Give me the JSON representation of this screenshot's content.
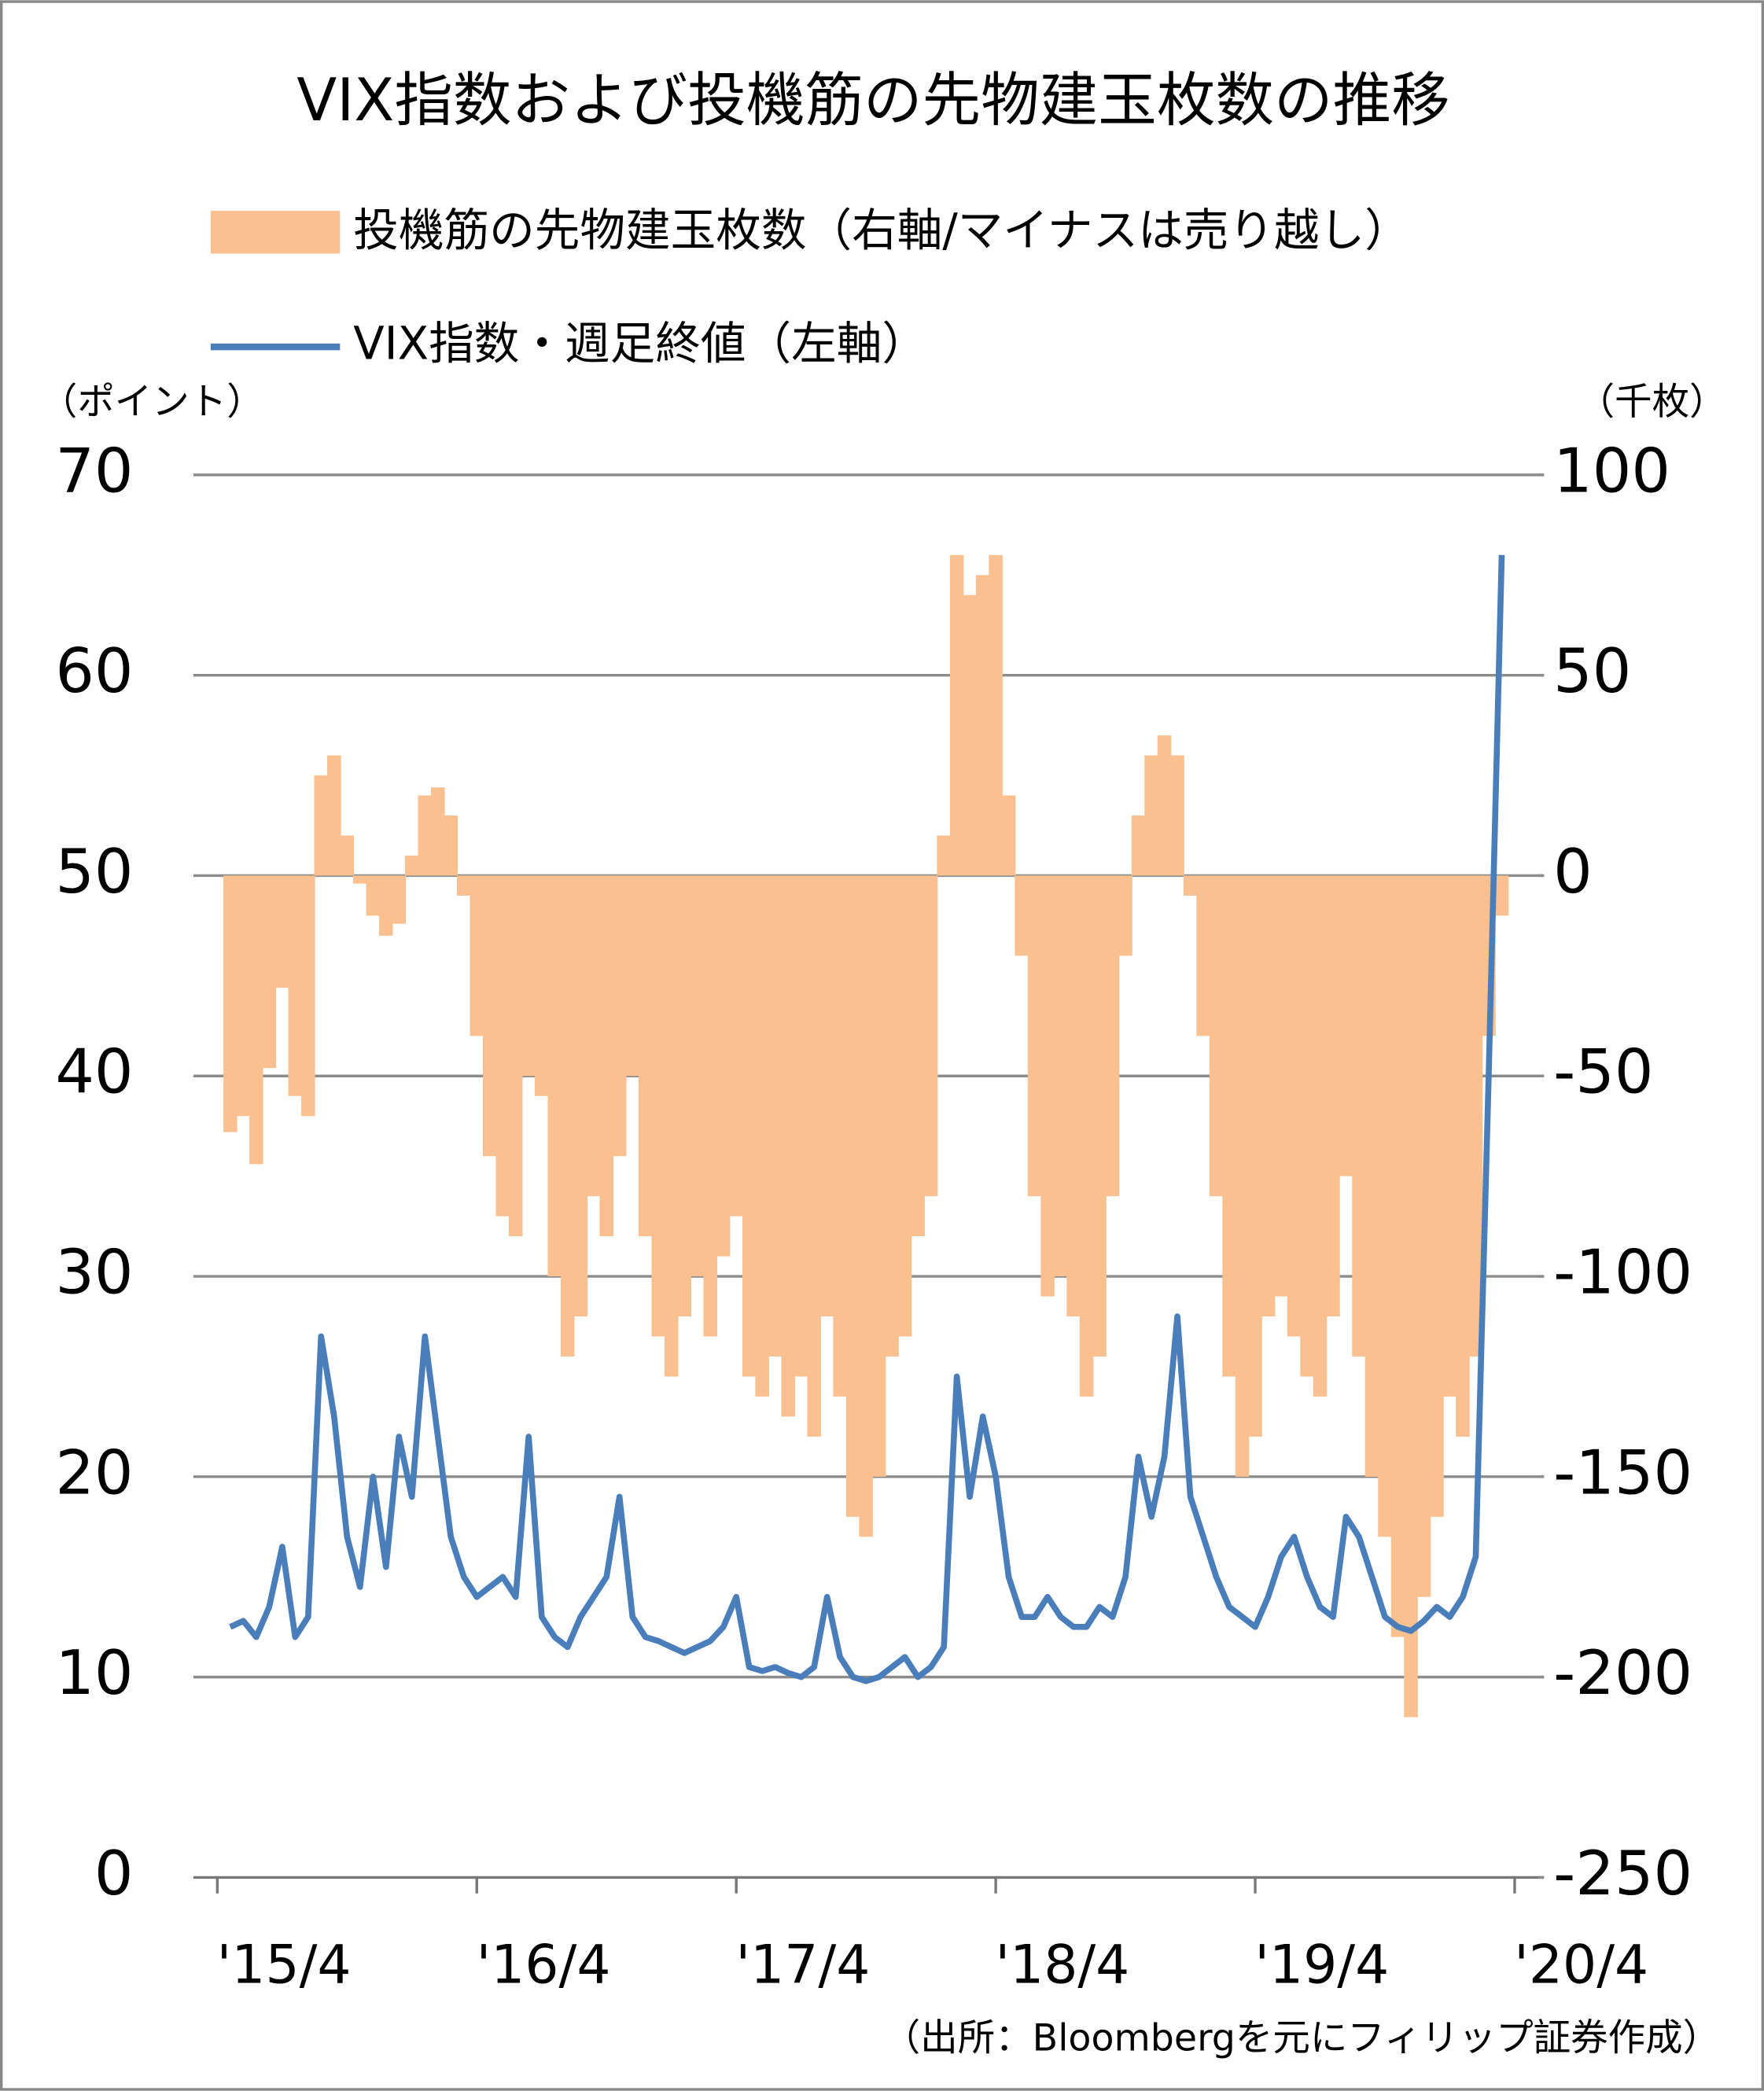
{
  "chart_data": {
    "type": "bar_line",
    "title": "VIX指数および投機筋の先物建玉枚数の推移",
    "y_label": "（ポイント）",
    "y2_label": "（千枚）",
    "source": "（出所：Bloombergを元にフィリップ証券作成）",
    "x": [
      2015.3,
      2015.35,
      2015.4,
      2015.45,
      2015.5,
      2015.55,
      2015.6,
      2015.65,
      2015.7,
      2015.75,
      2015.8,
      2015.85,
      2015.9,
      2015.95,
      2016.0,
      2016.05,
      2016.1,
      2016.15,
      2016.2,
      2016.25,
      2016.3,
      2016.35,
      2016.4,
      2016.45,
      2016.5,
      2016.55,
      2016.6,
      2016.65,
      2016.7,
      2016.75,
      2016.8,
      2016.85,
      2016.9,
      2016.95,
      2017.0,
      2017.05,
      2017.1,
      2017.15,
      2017.2,
      2017.25,
      2017.3,
      2017.35,
      2017.4,
      2017.45,
      2017.5,
      2017.55,
      2017.6,
      2017.65,
      2017.7,
      2017.75,
      2017.8,
      2017.85,
      2017.9,
      2017.95,
      2018.0,
      2018.05,
      2018.1,
      2018.15,
      2018.2,
      2018.25,
      2018.3,
      2018.35,
      2018.4,
      2018.45,
      2018.5,
      2018.55,
      2018.6,
      2018.65,
      2018.7,
      2018.75,
      2018.8,
      2018.85,
      2018.9,
      2018.95,
      2019.0,
      2019.05,
      2019.1,
      2019.15,
      2019.2,
      2019.25,
      2019.3,
      2019.35,
      2019.4,
      2019.45,
      2019.5,
      2019.55,
      2019.6,
      2019.65,
      2019.7,
      2019.75,
      2019.8,
      2019.85,
      2019.9,
      2019.95,
      2020.0,
      2020.05,
      2020.1,
      2020.15,
      2020.2
    ],
    "series": [
      {
        "name": "投機筋の先物建玉枚数（右軸/マイナスは売り越し）",
        "color": "#fac090",
        "axis": "y2",
        "values": [
          -64,
          -60,
          -72,
          -48,
          -28,
          -55,
          -60,
          25,
          30,
          10,
          -2,
          -10,
          -15,
          -12,
          5,
          20,
          22,
          15,
          -5,
          -40,
          -70,
          -85,
          -90,
          -50,
          -55,
          -100,
          -120,
          -110,
          -80,
          -90,
          -70,
          -50,
          -90,
          -115,
          -125,
          -110,
          -100,
          -115,
          -95,
          -85,
          -125,
          -130,
          -120,
          -135,
          -125,
          -140,
          -110,
          -130,
          -160,
          -165,
          -150,
          -120,
          -115,
          -90,
          -80,
          10,
          80,
          70,
          75,
          80,
          20,
          -20,
          -80,
          -105,
          -100,
          -110,
          -130,
          -120,
          -80,
          -20,
          15,
          30,
          35,
          30,
          -5,
          -40,
          -80,
          -125,
          -150,
          -140,
          -110,
          -105,
          -115,
          -125,
          -130,
          -110,
          -75,
          -120,
          -150,
          -165,
          -190,
          -210,
          -180,
          -160,
          -130,
          -140,
          -120,
          -40,
          -10
        ]
      },
      {
        "name": "VIX指数・週足終値（左軸）",
        "color": "#4a7ebb",
        "axis": "y",
        "values": [
          12.5,
          12.8,
          12,
          13.5,
          16.5,
          12,
          13,
          27,
          23,
          17,
          14.5,
          20,
          15.5,
          22,
          19,
          27,
          22,
          17,
          15,
          14,
          14.5,
          15,
          14,
          22,
          13,
          12,
          11.5,
          13,
          14,
          15,
          19,
          13,
          12,
          11.8,
          11.5,
          11.2,
          11.5,
          11.8,
          12.5,
          14,
          10.5,
          10.3,
          10.5,
          10.2,
          10,
          10.5,
          14,
          11,
          10,
          9.8,
          10,
          10.5,
          11,
          10,
          10.5,
          11.5,
          25,
          19,
          23,
          20,
          15,
          13,
          13,
          14,
          13,
          12.5,
          12.5,
          13.5,
          13,
          15,
          21,
          18,
          21,
          28,
          19,
          17,
          15,
          13.5,
          13,
          12.5,
          14,
          16,
          17,
          15,
          13.5,
          13,
          18,
          17,
          15,
          13,
          12.5,
          12.3,
          12.8,
          13.5,
          13,
          14,
          16,
          40,
          66
        ]
      }
    ],
    "xlim": [
      2015.17,
      2020.3
    ],
    "xticks": [
      {
        "value": 2015.25,
        "label": "'15/4"
      },
      {
        "value": 2016.25,
        "label": "'16/4"
      },
      {
        "value": 2017.25,
        "label": "'17/4"
      },
      {
        "value": 2018.25,
        "label": "'18/4"
      },
      {
        "value": 2019.25,
        "label": "'19/4"
      },
      {
        "value": 2020.25,
        "label": "'20/4"
      }
    ],
    "ylim": [
      0,
      70
    ],
    "yticks": [
      0,
      10,
      20,
      30,
      40,
      50,
      60,
      70
    ],
    "y2lim": [
      -250,
      100
    ],
    "y2ticks": [
      -250,
      -200,
      -150,
      -100,
      -50,
      0,
      50,
      100
    ],
    "y2_negative_tick_color": "#e00000",
    "grid": true
  }
}
